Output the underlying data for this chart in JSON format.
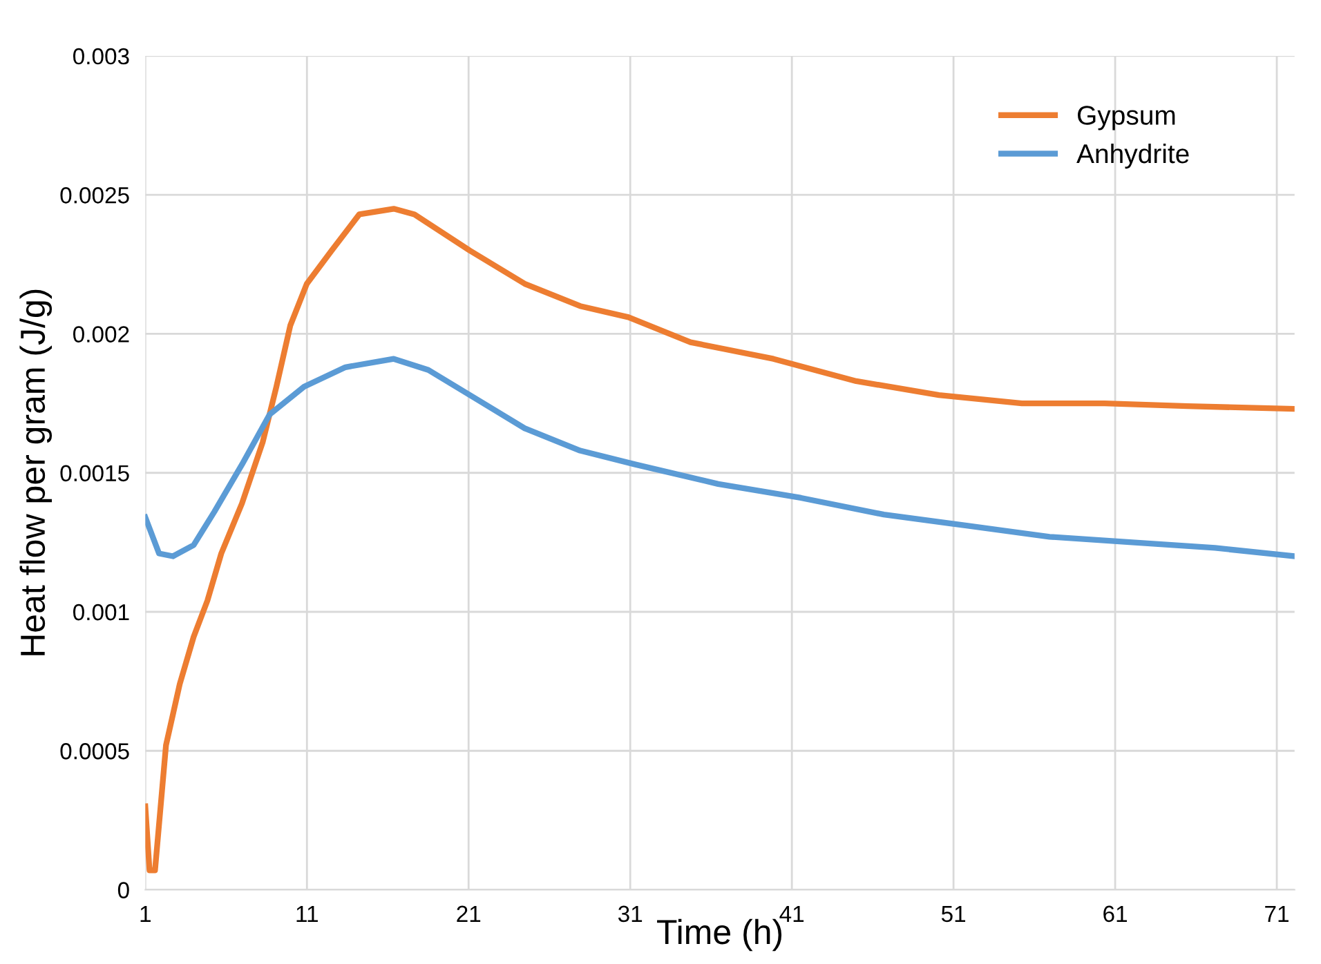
{
  "chart_data": {
    "type": "line",
    "xlabel": "Time (h)",
    "ylabel": "Heat flow per gram (J/g)",
    "xlim": [
      1,
      72.1
    ],
    "xticks": [
      1,
      11,
      21,
      31,
      41,
      51,
      61,
      71
    ],
    "ylim": [
      0,
      0.003
    ],
    "yticks": [
      0,
      0.0005,
      0.001,
      0.0015,
      0.002,
      0.0025,
      0.003
    ],
    "grid": true,
    "legend": "top right",
    "series": [
      {
        "name": "Gypsum",
        "color": "#ed7d31",
        "x": [
          1,
          1.26,
          1.6,
          2.28,
          3.13,
          3.99,
          4.84,
          5.7,
          6.98,
          8.26,
          9.11,
          9.97,
          10.99,
          12.53,
          14.24,
          16.37,
          17.65,
          21.07,
          24.48,
          27.9,
          30.89,
          34.73,
          39.86,
          44.98,
          50.1,
          55.23,
          60.35,
          65.47,
          72.1
        ],
        "values": [
          0.0003,
          7e-05,
          7e-05,
          0.00052,
          0.00074,
          0.00091,
          0.00104,
          0.00121,
          0.00139,
          0.00161,
          0.00181,
          0.00203,
          0.00218,
          0.0023,
          0.00243,
          0.00245,
          0.00243,
          0.0023,
          0.00218,
          0.0021,
          0.00206,
          0.00197,
          0.00191,
          0.00183,
          0.00178,
          0.00175,
          0.00175,
          0.00174,
          0.00173
        ]
      },
      {
        "name": "Anhydrite",
        "color": "#5b9bd5",
        "x": [
          1,
          1.85,
          2.71,
          3.99,
          5.27,
          6.98,
          8.69,
          10.82,
          13.38,
          16.37,
          18.51,
          21.07,
          24.48,
          27.9,
          31.32,
          36.44,
          41.56,
          46.69,
          51.81,
          56.94,
          62.06,
          67.18,
          72.1
        ],
        "values": [
          0.00134,
          0.00121,
          0.0012,
          0.00124,
          0.00136,
          0.00153,
          0.00171,
          0.00181,
          0.00188,
          0.00191,
          0.00187,
          0.00178,
          0.00166,
          0.00158,
          0.00153,
          0.00146,
          0.00141,
          0.00135,
          0.00131,
          0.00127,
          0.00125,
          0.00123,
          0.0012
        ]
      }
    ]
  }
}
